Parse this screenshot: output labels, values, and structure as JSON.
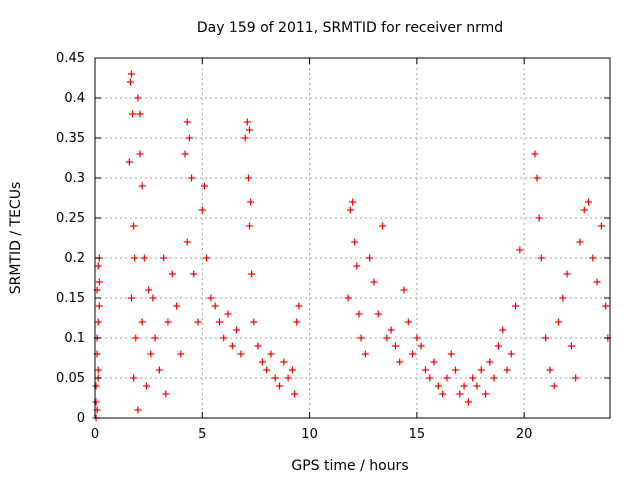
{
  "chart_data": {
    "type": "scatter",
    "title": "Day 159 of 2011, SRMTID for receiver nrmd",
    "xlabel": "GPS time / hours",
    "ylabel": "SRMTID / TECUs",
    "xlim": [
      0,
      24
    ],
    "ylim": [
      0,
      0.45
    ],
    "xticks": [
      "0",
      "5",
      "10",
      "15",
      "20"
    ],
    "yticks": [
      "0",
      "0.05",
      "0.1",
      "0.15",
      "0.2",
      "0.25",
      "0.3",
      "0.35",
      "0.4",
      "0.45"
    ],
    "grid": true,
    "marker": "plus",
    "color": "#ee0000",
    "series": [
      {
        "name": "SRMTID",
        "x": [
          0.05,
          0.1,
          0.15,
          0.2,
          0.1,
          0.15,
          0.05,
          0.2,
          0.1,
          0.15,
          0.1,
          0.2,
          0.05,
          0.15,
          1.6,
          1.65,
          1.7,
          1.75,
          1.8,
          1.7,
          1.85,
          1.9,
          1.8,
          2.0,
          2.1,
          2.0,
          2.2,
          2.1,
          2.3,
          2.2,
          2.5,
          2.6,
          2.4,
          2.7,
          2.8,
          3.0,
          3.2,
          3.4,
          3.3,
          3.6,
          3.8,
          4.0,
          4.2,
          4.3,
          4.4,
          4.5,
          4.3,
          4.6,
          4.8,
          5.0,
          5.1,
          5.2,
          5.4,
          5.6,
          5.8,
          6.0,
          6.2,
          6.4,
          6.6,
          6.8,
          7.0,
          7.1,
          7.2,
          7.15,
          7.25,
          7.2,
          7.3,
          7.4,
          7.6,
          7.8,
          8.0,
          8.2,
          8.4,
          8.6,
          8.8,
          9.0,
          9.2,
          9.4,
          9.5,
          9.3,
          11.8,
          11.9,
          12.0,
          12.1,
          12.2,
          12.3,
          12.4,
          12.6,
          12.8,
          13.0,
          13.2,
          13.4,
          13.6,
          13.8,
          14.0,
          14.2,
          14.4,
          14.6,
          14.8,
          15.0,
          15.2,
          15.4,
          15.6,
          15.8,
          16.0,
          16.2,
          16.4,
          16.6,
          16.8,
          17.0,
          17.2,
          17.4,
          17.6,
          17.8,
          18.0,
          18.2,
          18.4,
          18.6,
          18.8,
          19.0,
          19.2,
          19.4,
          19.6,
          19.8,
          20.5,
          20.6,
          20.7,
          20.8,
          21.0,
          21.2,
          21.4,
          21.6,
          21.8,
          22.0,
          22.2,
          22.4,
          22.6,
          22.8,
          23.0,
          23.2,
          23.4,
          23.6,
          23.8,
          23.9
        ],
        "y": [
          0.02,
          0.16,
          0.19,
          0.2,
          0.08,
          0.12,
          0.04,
          0.14,
          0.01,
          0.06,
          0.1,
          0.17,
          0.0,
          0.05,
          0.32,
          0.42,
          0.43,
          0.38,
          0.24,
          0.15,
          0.2,
          0.1,
          0.05,
          0.01,
          0.33,
          0.4,
          0.29,
          0.38,
          0.2,
          0.12,
          0.16,
          0.08,
          0.04,
          0.15,
          0.1,
          0.06,
          0.2,
          0.12,
          0.03,
          0.18,
          0.14,
          0.08,
          0.33,
          0.37,
          0.35,
          0.3,
          0.22,
          0.18,
          0.12,
          0.26,
          0.29,
          0.2,
          0.15,
          0.14,
          0.12,
          0.1,
          0.13,
          0.09,
          0.11,
          0.08,
          0.35,
          0.37,
          0.36,
          0.3,
          0.27,
          0.24,
          0.18,
          0.12,
          0.09,
          0.07,
          0.06,
          0.08,
          0.05,
          0.04,
          0.07,
          0.05,
          0.06,
          0.12,
          0.14,
          0.03,
          0.15,
          0.26,
          0.27,
          0.22,
          0.19,
          0.13,
          0.1,
          0.08,
          0.2,
          0.17,
          0.13,
          0.24,
          0.1,
          0.11,
          0.09,
          0.07,
          0.16,
          0.12,
          0.08,
          0.1,
          0.09,
          0.06,
          0.05,
          0.07,
          0.04,
          0.03,
          0.05,
          0.08,
          0.06,
          0.03,
          0.04,
          0.02,
          0.05,
          0.04,
          0.06,
          0.03,
          0.07,
          0.05,
          0.09,
          0.11,
          0.06,
          0.08,
          0.14,
          0.21,
          0.33,
          0.3,
          0.25,
          0.2,
          0.1,
          0.06,
          0.04,
          0.12,
          0.15,
          0.18,
          0.09,
          0.05,
          0.22,
          0.26,
          0.27,
          0.2,
          0.17,
          0.24,
          0.14,
          0.1
        ]
      }
    ]
  }
}
